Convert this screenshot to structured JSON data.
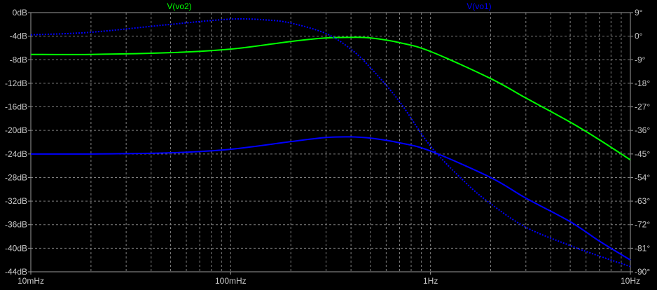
{
  "chart_data": {
    "type": "line",
    "x_scale": "log",
    "xlim": [
      0.01,
      10
    ],
    "x_ticks": [
      {
        "value": 0.01,
        "label": "10mHz"
      },
      {
        "value": 0.1,
        "label": "100mHz"
      },
      {
        "value": 1,
        "label": "1Hz"
      },
      {
        "value": 10,
        "label": "10Hz"
      }
    ],
    "y_left": {
      "unit": "dB",
      "ylim": [
        -44,
        0
      ],
      "ticks": [
        0,
        -4,
        -8,
        -12,
        -16,
        -20,
        -24,
        -28,
        -32,
        -36,
        -40,
        -44
      ],
      "tick_labels": [
        "0dB",
        "-4dB",
        "-8dB",
        "-12dB",
        "-16dB",
        "-20dB",
        "-24dB",
        "-28dB",
        "-32dB",
        "-36dB",
        "-40dB",
        "-44dB"
      ]
    },
    "y_right": {
      "unit": "deg",
      "ylim": [
        -90,
        9
      ],
      "ticks": [
        9,
        0,
        -9,
        -18,
        -27,
        -36,
        -45,
        -54,
        -63,
        -72,
        -81,
        -90
      ],
      "tick_labels": [
        "9°",
        "0°",
        "-9°",
        "-18°",
        "-27°",
        "-36°",
        "-45°",
        "-54°",
        "-63°",
        "-72°",
        "-81°",
        "-90°"
      ]
    },
    "grid": true,
    "legend": "top",
    "series": [
      {
        "name": "V(vo2)",
        "color": "#00ff00",
        "magnitude": {
          "x": [
            0.01,
            0.02,
            0.05,
            0.1,
            0.2,
            0.3,
            0.4,
            0.5,
            0.7,
            1,
            2,
            3,
            5,
            7,
            10
          ],
          "y": [
            -7.1,
            -7.1,
            -6.8,
            -6.2,
            -4.9,
            -4.3,
            -4.2,
            -4.3,
            -5.1,
            -6.6,
            -11.2,
            -14.5,
            -18.6,
            -21.6,
            -25.0
          ]
        }
      },
      {
        "name": "V(vo1)",
        "color": "#0000ff",
        "magnitude": {
          "x": [
            0.01,
            0.02,
            0.05,
            0.1,
            0.2,
            0.3,
            0.4,
            0.5,
            0.7,
            1,
            2,
            3,
            5,
            7,
            10
          ],
          "y": [
            -24.0,
            -24.0,
            -23.8,
            -23.2,
            -21.9,
            -21.2,
            -21.1,
            -21.3,
            -22.1,
            -23.5,
            -28.0,
            -31.5,
            -35.5,
            -38.8,
            -42.0
          ]
        },
        "phase": {
          "x": [
            0.01,
            0.02,
            0.05,
            0.1,
            0.15,
            0.2,
            0.3,
            0.4,
            0.5,
            0.7,
            1,
            1.5,
            2,
            3,
            5,
            7,
            10
          ],
          "y": [
            0.5,
            1.5,
            4.5,
            6.5,
            6.2,
            5.0,
            1.0,
            -5.0,
            -12.0,
            -25.0,
            -42.0,
            -56.0,
            -64.0,
            -73.0,
            -80.0,
            -84.0,
            -88.0
          ]
        }
      }
    ]
  }
}
